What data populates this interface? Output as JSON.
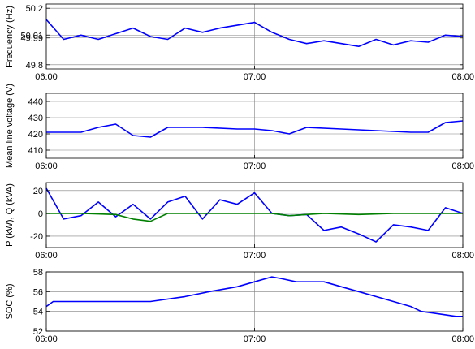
{
  "chart_data": [
    {
      "type": "line",
      "title": "",
      "xlabel": "",
      "ylabel": "Frequency (Hz)",
      "ylim": [
        49.77,
        50.23
      ],
      "yticks": [
        "50.2",
        "50.01",
        "49.99",
        "49.8"
      ],
      "ytick_values": [
        50.2,
        50.01,
        49.99,
        49.8
      ],
      "ytick_labels_visible": [
        "50.2",
        "50.0",
        "49.8"
      ],
      "xlim": [
        "06:00",
        "08:00"
      ],
      "xticks": [
        "06:00",
        "07:00",
        "08:00"
      ],
      "grid": true,
      "series": [
        {
          "color": "#0000ff",
          "x": [
            "06:00",
            "06:05",
            "06:10",
            "06:15",
            "06:20",
            "06:25",
            "06:30",
            "06:35",
            "06:40",
            "06:45",
            "06:50",
            "06:55",
            "07:00",
            "07:05",
            "07:10",
            "07:15",
            "07:20",
            "07:25",
            "07:30",
            "07:35",
            "07:40",
            "07:45",
            "07:50",
            "07:55",
            "08:00"
          ],
          "values": [
            50.12,
            49.98,
            50.01,
            49.98,
            50.02,
            50.06,
            50.0,
            49.98,
            50.06,
            50.03,
            50.06,
            50.08,
            50.1,
            50.03,
            49.98,
            49.95,
            49.97,
            49.95,
            49.93,
            49.98,
            49.94,
            49.97,
            49.96,
            50.01,
            50.0
          ]
        }
      ]
    },
    {
      "type": "line",
      "title": "",
      "xlabel": "",
      "ylabel": "Mean line voltage (V)",
      "ylim": [
        405,
        445
      ],
      "yticks": [
        "440",
        "430",
        "420",
        "410"
      ],
      "ytick_values": [
        440,
        430,
        420,
        410
      ],
      "xlim": [
        "06:00",
        "08:00"
      ],
      "xticks": [
        "06:00",
        "07:00",
        "08:00"
      ],
      "grid": true,
      "series": [
        {
          "color": "#0000ff",
          "x": [
            "06:00",
            "06:10",
            "06:15",
            "06:20",
            "06:25",
            "06:30",
            "06:35",
            "06:45",
            "06:55",
            "07:00",
            "07:05",
            "07:10",
            "07:15",
            "07:25",
            "07:35",
            "07:45",
            "07:50",
            "07:55",
            "08:00"
          ],
          "values": [
            421,
            421,
            424,
            426,
            419,
            418,
            424,
            424,
            423,
            423,
            422,
            420,
            424,
            423,
            422,
            421,
            421,
            427,
            428
          ]
        }
      ]
    },
    {
      "type": "line",
      "title": "",
      "xlabel": "",
      "ylabel": "P (kW), Q (kVA)",
      "ylim": [
        -30,
        27
      ],
      "yticks": [
        "20",
        "0",
        "-20"
      ],
      "ytick_values": [
        20,
        0,
        -20
      ],
      "xlim": [
        "06:00",
        "08:00"
      ],
      "xticks": [
        "06:00",
        "07:00",
        "08:00"
      ],
      "grid": true,
      "series": [
        {
          "color": "#0000ff",
          "x": [
            "06:00",
            "06:05",
            "06:10",
            "06:15",
            "06:20",
            "06:25",
            "06:30",
            "06:35",
            "06:40",
            "06:45",
            "06:50",
            "06:55",
            "07:00",
            "07:05",
            "07:10",
            "07:15",
            "07:20",
            "07:25",
            "07:30",
            "07:35",
            "07:40",
            "07:45",
            "07:50",
            "07:55",
            "08:00"
          ],
          "values": [
            22,
            -5,
            -2,
            10,
            -3,
            8,
            -5,
            10,
            15,
            -5,
            12,
            8,
            18,
            0,
            -2,
            -1,
            -15,
            -12,
            -18,
            -25,
            -10,
            -12,
            -15,
            5,
            0
          ]
        },
        {
          "color": "#008000",
          "x": [
            "06:00",
            "06:10",
            "06:20",
            "06:25",
            "06:30",
            "06:35",
            "06:40",
            "06:50",
            "07:00",
            "07:05",
            "07:10",
            "07:20",
            "07:30",
            "07:40",
            "07:50",
            "08:00"
          ],
          "values": [
            0,
            0,
            -1,
            -5,
            -7,
            0,
            0,
            0,
            0,
            0,
            -2,
            0,
            -1,
            0,
            0,
            0
          ]
        }
      ]
    },
    {
      "type": "line",
      "title": "",
      "xlabel": "",
      "ylabel": "SOC (%)",
      "ylim": [
        52,
        58
      ],
      "yticks": [
        "58",
        "56",
        "54",
        "52"
      ],
      "ytick_values": [
        58,
        56,
        54,
        52
      ],
      "xlim": [
        "06:00",
        "08:00"
      ],
      "xticks": [
        "06:00",
        "07:00",
        "08:00"
      ],
      "grid": true,
      "series": [
        {
          "color": "#0000ff",
          "x": [
            "06:00",
            "06:02",
            "06:30",
            "06:40",
            "06:47",
            "06:55",
            "07:00",
            "07:05",
            "07:08",
            "07:12",
            "07:20",
            "07:25",
            "07:30",
            "07:35",
            "07:40",
            "07:45",
            "07:48",
            "07:52",
            "07:58",
            "08:00"
          ],
          "values": [
            54.5,
            55,
            55,
            55.5,
            56,
            56.5,
            57,
            57.5,
            57.3,
            57,
            57,
            56.5,
            56,
            55.5,
            55,
            54.5,
            54,
            53.8,
            53.5,
            53.5
          ]
        }
      ]
    }
  ]
}
